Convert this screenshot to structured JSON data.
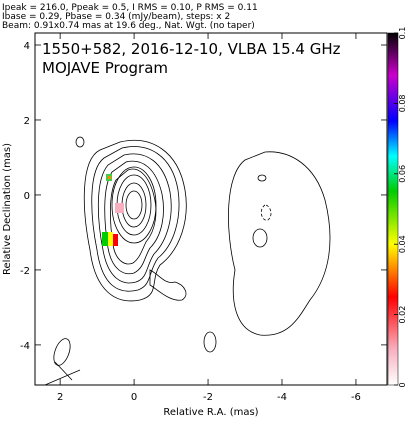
{
  "header": {
    "lines": [
      "Ipeak = 216.0, Ppeak = 0.5, I RMS = 0.10, P RMS = 0.11",
      "Ibase = 0.29, Pbase = 0.34 (mJy/beam), steps: x 2",
      "Beam: 0.91x0.74 mas at 19.6 deg., Nat. Wgt. (no taper)"
    ]
  },
  "chart_data": {
    "type": "contour",
    "title": "1550+582, 2016-12-10, VLBA 15.4 GHz",
    "subtitle": "MOJAVE Program",
    "x_label": "Relative R.A. (mas)",
    "y_label": "Relative Declination (mas)",
    "xlim": [
      2.68,
      -6.84
    ],
    "xticks": [
      2,
      0,
      -2,
      -4,
      -6
    ],
    "ylim": [
      -5.07,
      4.32
    ],
    "yticks": [
      -4,
      -2,
      0,
      2,
      4
    ],
    "colorbar": {
      "lim": [
        0,
        0.1
      ],
      "ticks": [
        0,
        0.02,
        0.04,
        0.06,
        0.08,
        0.1
      ]
    }
  }
}
